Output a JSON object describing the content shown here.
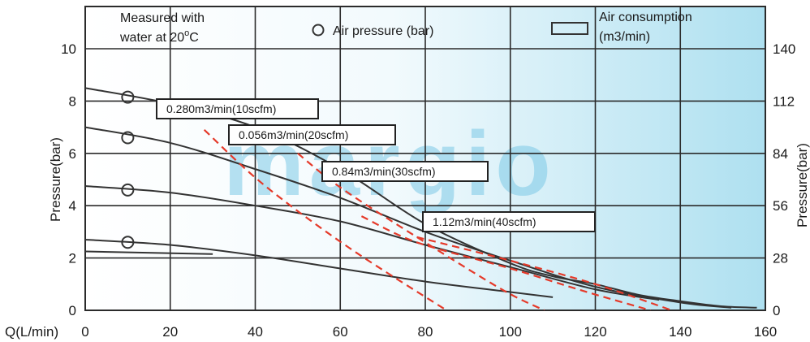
{
  "chart_data": {
    "type": "line",
    "legend": {
      "note_line1": "Measured with",
      "note_line2": "water at 20",
      "note_degree": "o",
      "note_unit": "C",
      "pressure_label": "Air pressure (bar)",
      "consumption_line1": "Air consumption",
      "consumption_line2": "(m3/min)"
    },
    "watermark": "margio",
    "xlabel": "Q(L/min)",
    "ylabel_left": "Pressure(bar)",
    "ylabel_right": "Pressure(bar)",
    "xlim": [
      0,
      160
    ],
    "ylim_left": [
      0,
      10
    ],
    "ylim_right": [
      0,
      140
    ],
    "x_ticks": [
      "0",
      "20",
      "40",
      "60",
      "80",
      "100",
      "120",
      "140",
      "160"
    ],
    "y_ticks_left": [
      "0",
      "2",
      "4",
      "6",
      "8",
      "10"
    ],
    "y_ticks_right": [
      "0",
      "28",
      "56",
      "84",
      "112",
      "140"
    ],
    "grid": true,
    "colors": {
      "curve": "#333333",
      "dashed": "#e53a2a",
      "grid": "#2b2b2b",
      "gradient_end": "#aee0f0"
    },
    "performance_curves": [
      {
        "points": [
          [
            0,
            8.5
          ],
          [
            20,
            7.9
          ],
          [
            40,
            7.0
          ],
          [
            60,
            5.4
          ],
          [
            80,
            3.3
          ],
          [
            100,
            1.8
          ],
          [
            110,
            1.3
          ],
          [
            120,
            1.0
          ],
          [
            130,
            0.6
          ],
          [
            140,
            0.35
          ],
          [
            150,
            0.15
          ],
          [
            158,
            0.1
          ]
        ]
      },
      {
        "points": [
          [
            0,
            7.0
          ],
          [
            20,
            6.4
          ],
          [
            40,
            5.4
          ],
          [
            60,
            4.3
          ],
          [
            80,
            3.0
          ],
          [
            100,
            1.9
          ],
          [
            120,
            0.9
          ],
          [
            140,
            0.3
          ],
          [
            152,
            0.1
          ]
        ]
      },
      {
        "points": [
          [
            0,
            4.75
          ],
          [
            20,
            4.5
          ],
          [
            40,
            4.0
          ],
          [
            60,
            3.4
          ],
          [
            80,
            2.5
          ],
          [
            100,
            1.65
          ],
          [
            120,
            0.8
          ],
          [
            135,
            0.4
          ]
        ]
      },
      {
        "points": [
          [
            0,
            2.7
          ],
          [
            20,
            2.5
          ],
          [
            40,
            2.1
          ],
          [
            60,
            1.6
          ],
          [
            80,
            1.1
          ],
          [
            100,
            0.7
          ],
          [
            110,
            0.5
          ]
        ]
      },
      {
        "points": [
          [
            0,
            2.25
          ],
          [
            30,
            2.15
          ]
        ]
      }
    ],
    "air_consumption_lines": [
      {
        "label": "0.280m3/min(10scfm)",
        "points": [
          [
            28,
            6.9
          ],
          [
            42,
            4.8
          ],
          [
            62,
            2.4
          ],
          [
            85,
            0
          ]
        ]
      },
      {
        "label": "0.056m3/min(20scfm)",
        "points": [
          [
            50,
            6.0
          ],
          [
            60,
            4.7
          ],
          [
            78,
            2.8
          ],
          [
            98,
            0.8
          ],
          [
            108,
            0
          ]
        ]
      },
      {
        "label": "0.84m3/min(30scfm)",
        "points": [
          [
            65,
            3.6
          ],
          [
            78,
            2.6
          ],
          [
            100,
            1.6
          ],
          [
            118,
            0.7
          ],
          [
            133,
            0
          ]
        ]
      },
      {
        "label": "1.12m3/min(40scfm)",
        "points": [
          [
            78,
            2.8
          ],
          [
            100,
            1.9
          ],
          [
            120,
            1.0
          ],
          [
            138,
            0
          ]
        ]
      }
    ],
    "air_pressure_markers": [
      {
        "x": 10,
        "y": 8.15
      },
      {
        "x": 10,
        "y": 6.6
      },
      {
        "x": 10,
        "y": 4.6
      },
      {
        "x": 10,
        "y": 2.6
      }
    ]
  }
}
